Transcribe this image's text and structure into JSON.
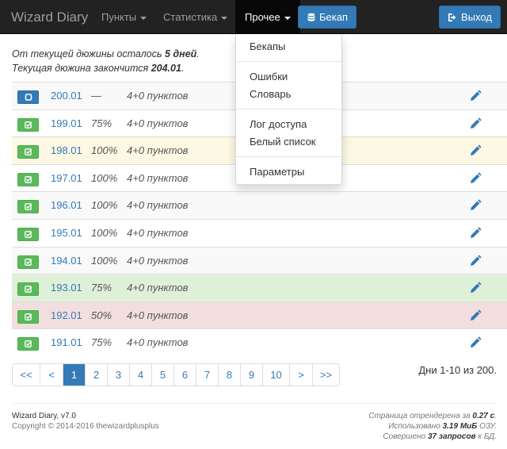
{
  "navbar": {
    "brand": "Wizard Diary",
    "items": [
      {
        "label": "Пункты"
      },
      {
        "label": "Статистика"
      },
      {
        "label": "Прочее"
      }
    ],
    "backup_label": "Бекап",
    "logout_label": "Выход"
  },
  "dropdown": {
    "items": [
      "Бекапы",
      "Ошибки",
      "Словарь",
      "Лог доступа",
      "Белый список",
      "Параметры"
    ]
  },
  "info": {
    "line1_prefix": "От текущей дюжины осталось ",
    "line1_bold": "5 дней",
    "line1_suffix": ".",
    "line2_prefix": "Текущая дюжина закончится ",
    "line2_bold": "204.01",
    "line2_suffix": "."
  },
  "rows": [
    {
      "num": "200.01",
      "pct": "—",
      "points": "4+0 пунктов",
      "status": "current"
    },
    {
      "num": "199.01",
      "pct": "75%",
      "points": "4+0 пунктов",
      "status": "done"
    },
    {
      "num": "198.01",
      "pct": "100%",
      "points": "4+0 пунктов",
      "status": "done"
    },
    {
      "num": "197.01",
      "pct": "100%",
      "points": "4+0 пунктов",
      "status": "done"
    },
    {
      "num": "196.01",
      "pct": "100%",
      "points": "4+0 пунктов",
      "status": "done"
    },
    {
      "num": "195.01",
      "pct": "100%",
      "points": "4+0 пунктов",
      "status": "done"
    },
    {
      "num": "194.01",
      "pct": "100%",
      "points": "4+0 пунктов",
      "status": "done"
    },
    {
      "num": "193.01",
      "pct": "75%",
      "points": "4+0 пунктов",
      "status": "done"
    },
    {
      "num": "192.01",
      "pct": "50%",
      "points": "4+0 пунктов",
      "status": "done"
    },
    {
      "num": "191.01",
      "pct": "75%",
      "points": "4+0 пунктов",
      "status": "done"
    }
  ],
  "pagination": {
    "items": [
      "<<",
      "<",
      "1",
      "2",
      "3",
      "4",
      "5",
      "6",
      "7",
      "8",
      "9",
      "10",
      ">",
      ">>"
    ],
    "active": "1",
    "summary": "Дни 1-10 из 200."
  },
  "footer": {
    "app": "Wizard Diary, v7.0",
    "copyright": "Copyright © 2014-2016 thewizardplusplus",
    "render_prefix": "Страница отрендерена за ",
    "render_value": "0.27 с",
    "render_suffix": ".",
    "memory_prefix": "Использовано ",
    "memory_value": "3.19 МиБ",
    "memory_suffix": " ОЗУ.",
    "queries_prefix": "Совершено ",
    "queries_value": "37 запросов",
    "queries_suffix": " к БД."
  },
  "colors": {
    "navbar_bg": "#222222",
    "primary": "#337ab7",
    "success": "#5cb85c",
    "row_warning": "#fcf8e3",
    "row_success": "#dff0d8",
    "row_danger": "#f2dede"
  }
}
